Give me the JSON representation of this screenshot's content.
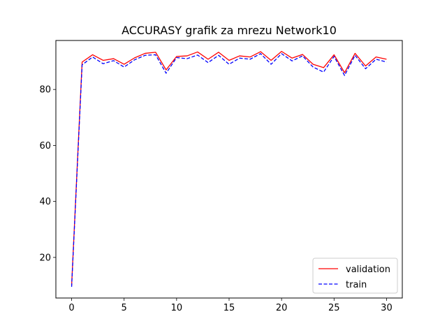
{
  "chart_data": {
    "type": "line",
    "title": "ACCURASY grafik za mrezu Network10",
    "xlabel": "",
    "ylabel": "",
    "xlim": [
      -1.5,
      31.5
    ],
    "ylim": [
      5.5,
      97.5
    ],
    "xticks": [
      0,
      5,
      10,
      15,
      20,
      25,
      30
    ],
    "yticks": [
      20,
      40,
      60,
      80
    ],
    "grid": false,
    "legend_position": "lower right",
    "x": [
      0,
      1,
      2,
      3,
      4,
      5,
      6,
      7,
      8,
      9,
      10,
      11,
      12,
      13,
      14,
      15,
      16,
      17,
      18,
      19,
      20,
      21,
      22,
      23,
      24,
      25,
      26,
      27,
      28,
      29,
      30
    ],
    "series": [
      {
        "name": "validation",
        "color": "#ff0000",
        "style": "solid",
        "values": [
          10.0,
          89.8,
          92.4,
          90.4,
          91.0,
          89.0,
          91.3,
          92.9,
          93.3,
          87.0,
          91.8,
          92.0,
          93.4,
          90.8,
          93.3,
          90.4,
          92.0,
          91.6,
          93.5,
          90.4,
          93.6,
          91.2,
          92.5,
          89.0,
          87.8,
          92.4,
          86.0,
          92.9,
          88.4,
          91.6,
          90.8
        ]
      },
      {
        "name": "train",
        "color": "#0000ff",
        "style": "dashed",
        "values": [
          9.5,
          88.8,
          91.6,
          89.2,
          90.3,
          88.0,
          90.6,
          92.2,
          92.4,
          85.8,
          91.4,
          91.0,
          92.3,
          89.6,
          92.2,
          89.0,
          91.2,
          90.8,
          92.8,
          89.0,
          92.8,
          90.2,
          92.0,
          88.0,
          86.2,
          91.8,
          85.0,
          92.2,
          87.4,
          90.8,
          89.8
        ]
      }
    ]
  }
}
